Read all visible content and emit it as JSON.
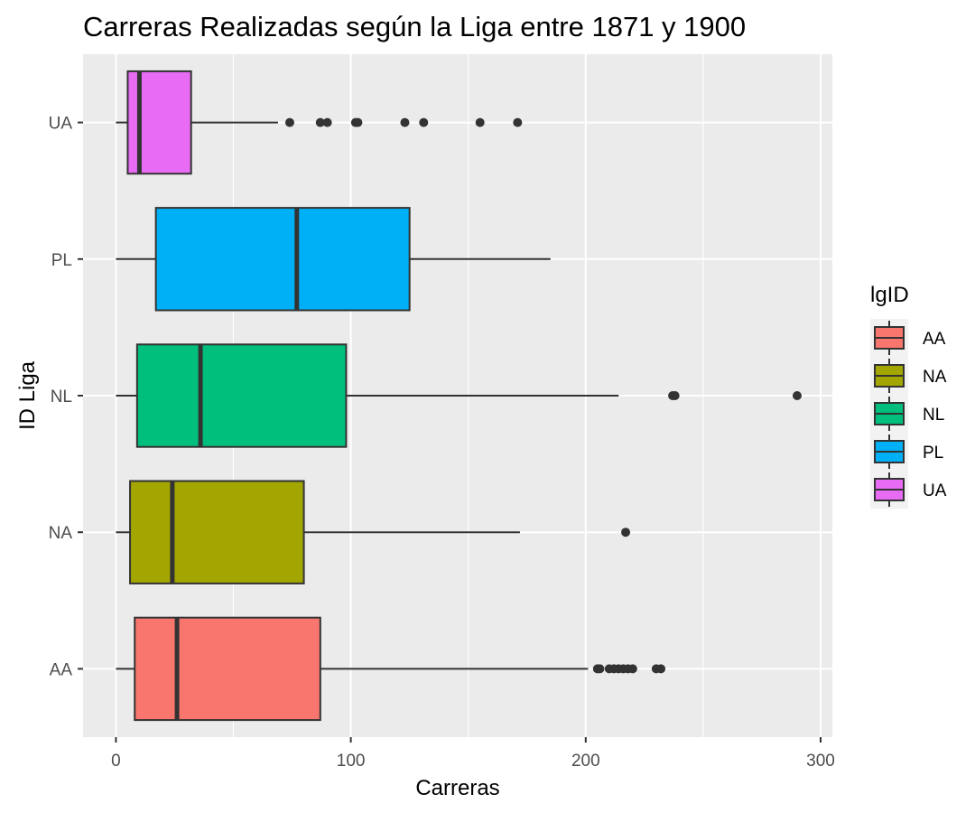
{
  "chart_data": {
    "type": "boxplot",
    "orientation": "horizontal",
    "title": "Carreras Realizadas según la Liga entre 1871 y 1900",
    "xlabel": "Carreras",
    "ylabel": "ID Liga",
    "xlim": [
      -14,
      305
    ],
    "x_ticks": [
      0,
      100,
      200,
      300
    ],
    "x_tick_labels": [
      "0",
      "100",
      "200",
      "300"
    ],
    "categories": [
      "AA",
      "NA",
      "NL",
      "PL",
      "UA"
    ],
    "grid": true,
    "legend": {
      "title": "lgID",
      "position": "right",
      "entries": [
        "AA",
        "NA",
        "NL",
        "PL",
        "UA"
      ]
    },
    "colors": {
      "AA": "#F8766D",
      "NA": "#A3A500",
      "NL": "#00BF7D",
      "PL": "#00B0F6",
      "UA": "#E76BF3",
      "panel_background": "#EBEBEB",
      "grid_lines": "#FFFFFF",
      "box_outline": "#333333"
    },
    "series": [
      {
        "name": "AA",
        "whisker_low": 0,
        "q1": 8,
        "median": 26,
        "q3": 87,
        "whisker_high": 201,
        "outliers": [
          205,
          206,
          210,
          212,
          214,
          216,
          218,
          220,
          230,
          232
        ]
      },
      {
        "name": "NA",
        "whisker_low": 0,
        "q1": 6,
        "median": 24,
        "q3": 80,
        "whisker_high": 172,
        "outliers": [
          217
        ]
      },
      {
        "name": "NL",
        "whisker_low": 0,
        "q1": 9,
        "median": 36,
        "q3": 98,
        "whisker_high": 214,
        "outliers": [
          237,
          238,
          290
        ]
      },
      {
        "name": "PL",
        "whisker_low": 0,
        "q1": 17,
        "median": 77,
        "q3": 125,
        "whisker_high": 185,
        "outliers": []
      },
      {
        "name": "UA",
        "whisker_low": 0,
        "q1": 5,
        "median": 10,
        "q3": 32,
        "whisker_high": 69,
        "outliers": [
          74,
          87,
          90,
          102,
          103,
          123,
          131,
          155,
          171
        ]
      }
    ]
  }
}
